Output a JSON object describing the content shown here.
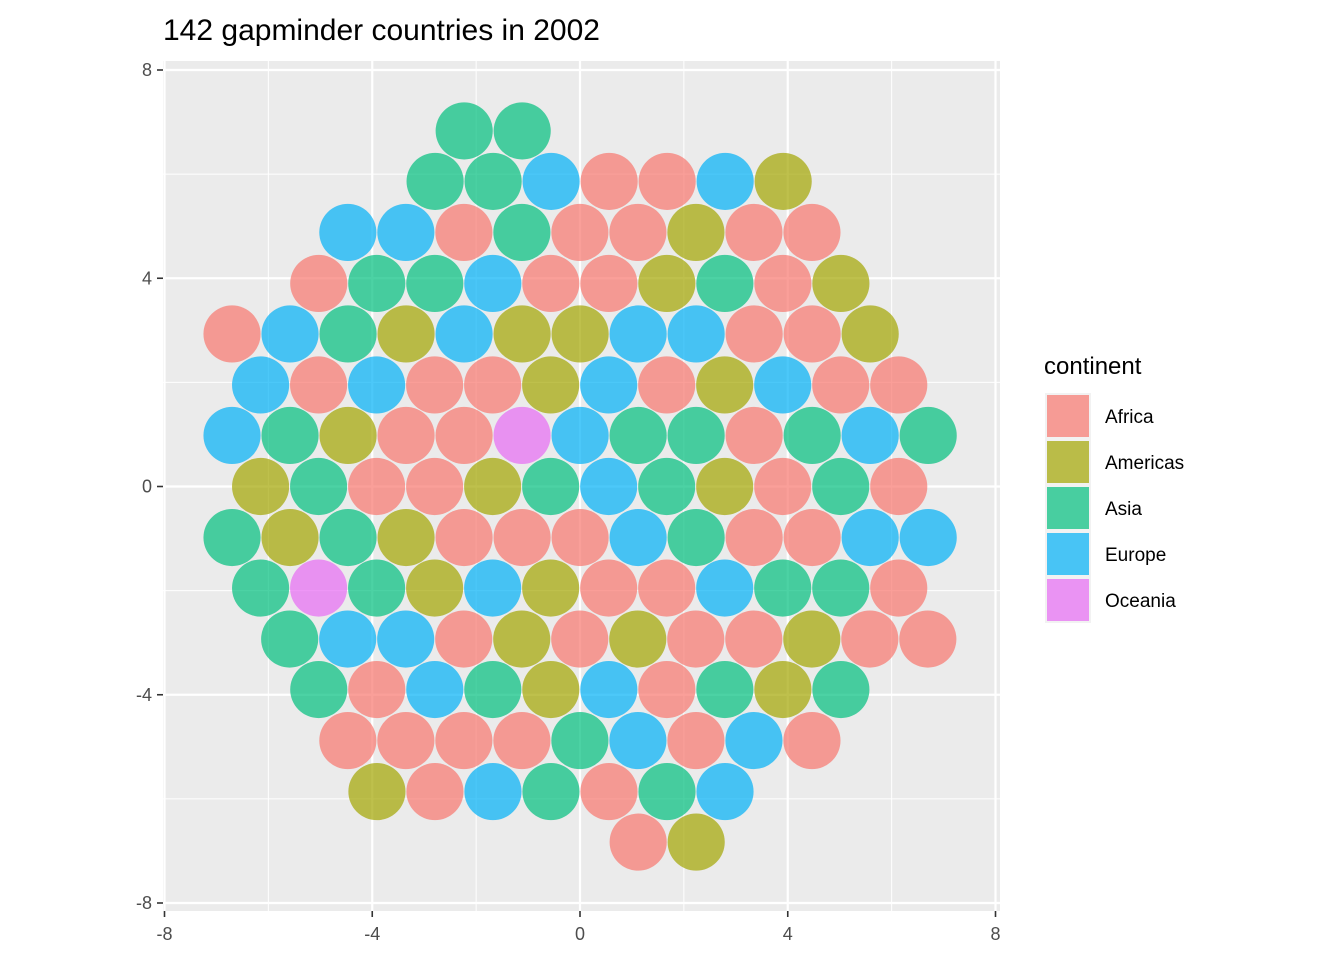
{
  "chart_data": {
    "type": "scatter",
    "title": "142 gapminder countries in 2002",
    "xlabel": "",
    "ylabel": "",
    "xlim": [
      -8,
      8
    ],
    "ylim": [
      -8,
      8
    ],
    "x_ticks": [
      "-8",
      "-4",
      "0",
      "4",
      "8"
    ],
    "y_ticks": [
      "8",
      "4",
      "0",
      "-4",
      "-8"
    ],
    "grid": true,
    "point_radius": 0.55,
    "point_alpha": 0.7,
    "legend": {
      "title": "continent",
      "position": "right",
      "entries": [
        {
          "name": "Africa",
          "color": "#F8766D"
        },
        {
          "name": "Americas",
          "color": "#A3A500"
        },
        {
          "name": "Asia",
          "color": "#00BF7D"
        },
        {
          "name": "Europe",
          "color": "#00B0F6"
        },
        {
          "name": "Oceania",
          "color": "#E76BF3"
        }
      ]
    },
    "rows": [
      {
        "y": 6.83,
        "x0": -2.23,
        "continents": [
          "Asia",
          "Asia"
        ]
      },
      {
        "y": 5.86,
        "x0": -2.79,
        "continents": [
          "Asia",
          "Asia",
          "Europe",
          "Africa",
          "Africa",
          "Europe",
          "Americas"
        ]
      },
      {
        "y": 4.88,
        "x0": -4.47,
        "continents": [
          "Europe",
          "Europe",
          "Africa",
          "Asia",
          "Africa",
          "Africa",
          "Americas",
          "Africa",
          "Africa"
        ]
      },
      {
        "y": 3.9,
        "x0": -5.03,
        "continents": [
          "Africa",
          "Asia",
          "Asia",
          "Europe",
          "Africa",
          "Africa",
          "Americas",
          "Asia",
          "Africa",
          "Americas"
        ]
      },
      {
        "y": 2.93,
        "x0": -6.7,
        "continents": [
          "Africa",
          "Europe",
          "Asia",
          "Americas",
          "Europe",
          "Americas",
          "Americas",
          "Europe",
          "Europe",
          "Africa",
          "Africa",
          "Americas"
        ]
      },
      {
        "y": 1.95,
        "x0": -6.15,
        "continents": [
          "Europe",
          "Africa",
          "Europe",
          "Africa",
          "Africa",
          "Americas",
          "Europe",
          "Africa",
          "Americas",
          "Europe",
          "Africa",
          "Africa"
        ]
      },
      {
        "y": 0.98,
        "x0": -6.7,
        "continents": [
          "Europe",
          "Asia",
          "Americas",
          "Africa",
          "Africa",
          "Oceania",
          "Europe",
          "Asia",
          "Asia",
          "Africa",
          "Asia",
          "Europe",
          "Asia"
        ]
      },
      {
        "y": 0.0,
        "x0": -6.15,
        "continents": [
          "Americas",
          "Asia",
          "Africa",
          "Africa",
          "Americas",
          "Asia",
          "Europe",
          "Asia",
          "Americas",
          "Africa",
          "Asia",
          "Africa"
        ]
      },
      {
        "y": -0.98,
        "x0": -6.7,
        "continents": [
          "Asia",
          "Americas",
          "Asia",
          "Americas",
          "Africa",
          "Africa",
          "Africa",
          "Europe",
          "Asia",
          "Africa",
          "Africa",
          "Europe",
          "Europe"
        ]
      },
      {
        "y": -1.95,
        "x0": -6.15,
        "continents": [
          "Asia",
          "Oceania",
          "Asia",
          "Americas",
          "Europe",
          "Americas",
          "Africa",
          "Africa",
          "Europe",
          "Asia",
          "Asia",
          "Africa"
        ]
      },
      {
        "y": -2.93,
        "x0": -5.59,
        "continents": [
          "Asia",
          "Europe",
          "Europe",
          "Africa",
          "Americas",
          "Africa",
          "Americas",
          "Africa",
          "Africa",
          "Americas",
          "Africa",
          "Africa"
        ]
      },
      {
        "y": -3.9,
        "x0": -5.03,
        "continents": [
          "Asia",
          "Africa",
          "Europe",
          "Asia",
          "Americas",
          "Europe",
          "Africa",
          "Asia",
          "Americas",
          "Asia"
        ]
      },
      {
        "y": -4.88,
        "x0": -4.47,
        "continents": [
          "Africa",
          "Africa",
          "Africa",
          "Africa",
          "Asia",
          "Europe",
          "Africa",
          "Europe",
          "Africa"
        ]
      },
      {
        "y": -5.86,
        "x0": -3.91,
        "continents": [
          "Americas",
          "Africa",
          "Europe",
          "Asia",
          "Africa",
          "Asia",
          "Europe"
        ]
      },
      {
        "y": -6.83,
        "x0": 1.12,
        "continents": [
          "Africa",
          "Americas"
        ]
      }
    ],
    "row_spacing": 1.117
  }
}
